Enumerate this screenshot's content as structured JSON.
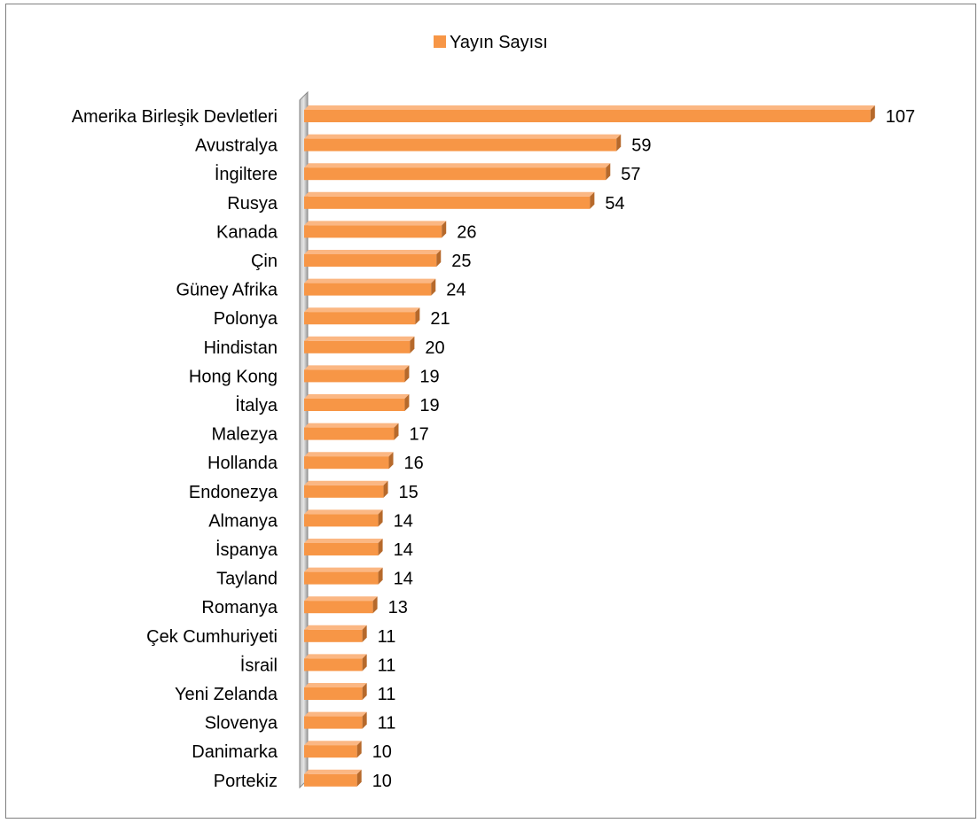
{
  "chart_data": {
    "type": "bar",
    "orientation": "horizontal",
    "legend": {
      "position": "top",
      "entries": [
        "Yayın Sayısı"
      ]
    },
    "series": [
      {
        "name": "Yayın Sayısı",
        "color": "#f79646",
        "values": [
          107,
          59,
          57,
          54,
          26,
          25,
          24,
          21,
          20,
          19,
          19,
          17,
          16,
          15,
          14,
          14,
          14,
          13,
          11,
          11,
          11,
          11,
          10,
          10
        ]
      }
    ],
    "categories": [
      "Amerika Birleşik Devletleri",
      "Avustralya",
      "İngiltere",
      "Rusya ",
      "Kanada",
      "Çin",
      "Güney Afrika",
      "Polonya",
      "Hindistan",
      "Hong Kong",
      "İtalya",
      "Malezya",
      "Hollanda",
      "Endonezya",
      "Almanya",
      "İspanya",
      "Tayland",
      "Romanya",
      "Çek Cumhuriyeti",
      "İsrail",
      "Yeni Zelanda",
      "Slovenya",
      "Danimarka",
      "Portekiz"
    ],
    "grid": false,
    "style": "3d"
  }
}
